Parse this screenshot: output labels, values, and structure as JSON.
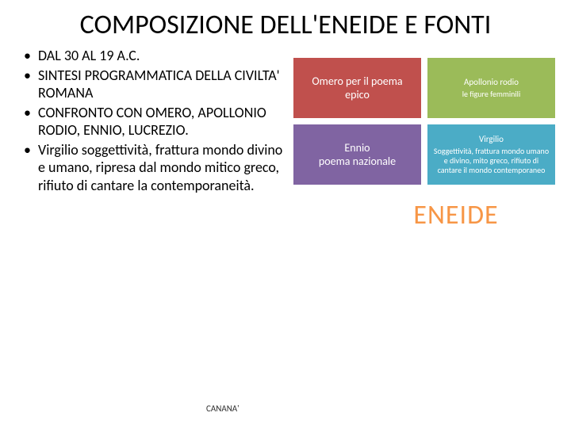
{
  "title": "COMPOSIZIONE DELL'ENEIDE E FONTI",
  "bullets": [
    "DAL 30 AL 19 A.C.",
    "SINTESI PROGRAMMATICA DELLA CIVILTA' ROMANA",
    "CONFRONTO CON OMERO, APOLLONIO RODIO, ENNIO, LUCREZIO.",
    "Virgilio soggettività, frattura mondo divino e umano, ripresa dal mondo mitico greco, rifiuto di cantare la contemporaneità."
  ],
  "boxes": [
    {
      "line1": "Omero per il poema",
      "line2": "epico",
      "color": "#c0504d",
      "small": false
    },
    {
      "line1": "Apollonio rodio",
      "line2": "le figure femminili",
      "color": "#9bbb59",
      "small": true
    },
    {
      "line1": "Ennio",
      "line2": "poema nazionale",
      "color": "#8064a2",
      "small": false
    },
    {
      "line1": "Virgilio",
      "line2": "Soggettività, frattura mondo umano e divino, mito greco, rifiuto di cantare il mondo contemporaneo",
      "color": "#4bacc6",
      "small": true
    }
  ],
  "eneide": {
    "text": "ENEIDE",
    "color": "#f79646"
  },
  "footer": "CANANA'"
}
